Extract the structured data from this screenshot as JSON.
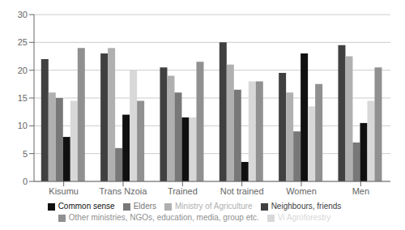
{
  "chart_data": {
    "type": "bar",
    "categories": [
      "Kisumu",
      "Trans Nzoia",
      "Trained",
      "Not trained",
      "Women",
      "Men"
    ],
    "series": [
      {
        "name": "Neighbours, friends",
        "color": "#404040",
        "values": [
          22,
          23,
          20.5,
          25,
          19.5,
          24.5
        ]
      },
      {
        "name": "Ministry of Agriculture",
        "color": "#b0b0b0",
        "values": [
          16,
          24,
          19,
          21,
          16,
          22.5
        ]
      },
      {
        "name": "Elders",
        "color": "#787878",
        "values": [
          15,
          6,
          16,
          16.5,
          9,
          7
        ]
      },
      {
        "name": "Common sense",
        "color": "#101010",
        "values": [
          8,
          12,
          11.5,
          3.5,
          23,
          10.5
        ]
      },
      {
        "name": "Vi Agroforestry",
        "color": "#d8d8d8",
        "values": [
          14.5,
          20,
          11.5,
          18,
          13.5,
          14.5
        ]
      },
      {
        "name": "Other ministries, NGOs, education, media, group etc.",
        "color": "#909090",
        "values": [
          24,
          14.5,
          21.5,
          18,
          17.5,
          20.5
        ]
      }
    ],
    "ylim": [
      0,
      30
    ],
    "yticks": [
      0,
      5,
      10,
      15,
      20,
      25,
      30
    ],
    "grid": true,
    "legend": "bottom"
  }
}
